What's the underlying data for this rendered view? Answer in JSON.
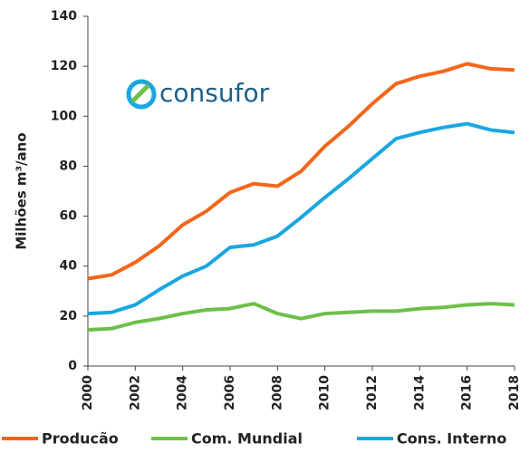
{
  "chart_data": {
    "type": "line",
    "y_label": "Milhões m³/ano",
    "logo": "consufor",
    "x": [
      2000,
      2001,
      2002,
      2003,
      2004,
      2005,
      2006,
      2007,
      2008,
      2009,
      2010,
      2011,
      2012,
      2013,
      2014,
      2015,
      2016,
      2017,
      2018
    ],
    "series": [
      {
        "name": "Producão",
        "color": "#f4661b",
        "values": [
          35,
          36.5,
          41.5,
          48,
          56.5,
          62,
          69.5,
          73,
          72,
          78,
          88,
          96,
          105,
          113,
          116,
          118,
          121,
          119,
          118.5
        ]
      },
      {
        "name": "Com. Mundial",
        "color": "#6cc04a",
        "values": [
          14.5,
          15,
          17.5,
          19,
          21,
          22.5,
          23,
          25,
          21,
          19,
          21,
          21.5,
          22,
          22,
          23,
          23.5,
          24.5,
          25,
          24.5
        ]
      },
      {
        "name": "Cons. Interno",
        "color": "#1aa7e0",
        "values": [
          21,
          21.5,
          24.5,
          30.5,
          36,
          40,
          47.5,
          48.5,
          52,
          59.5,
          67.5,
          75,
          83,
          91,
          93.5,
          95.5,
          97,
          94.5,
          93.5
        ]
      }
    ],
    "xlim": [
      2000,
      2018
    ],
    "xticks": [
      2000,
      2002,
      2004,
      2006,
      2008,
      2010,
      2012,
      2014,
      2016,
      2018
    ],
    "ylim": [
      0,
      140
    ],
    "yticks": [
      0,
      20,
      40,
      60,
      80,
      100,
      120,
      140
    ],
    "grid": false,
    "legend": "bottom"
  }
}
